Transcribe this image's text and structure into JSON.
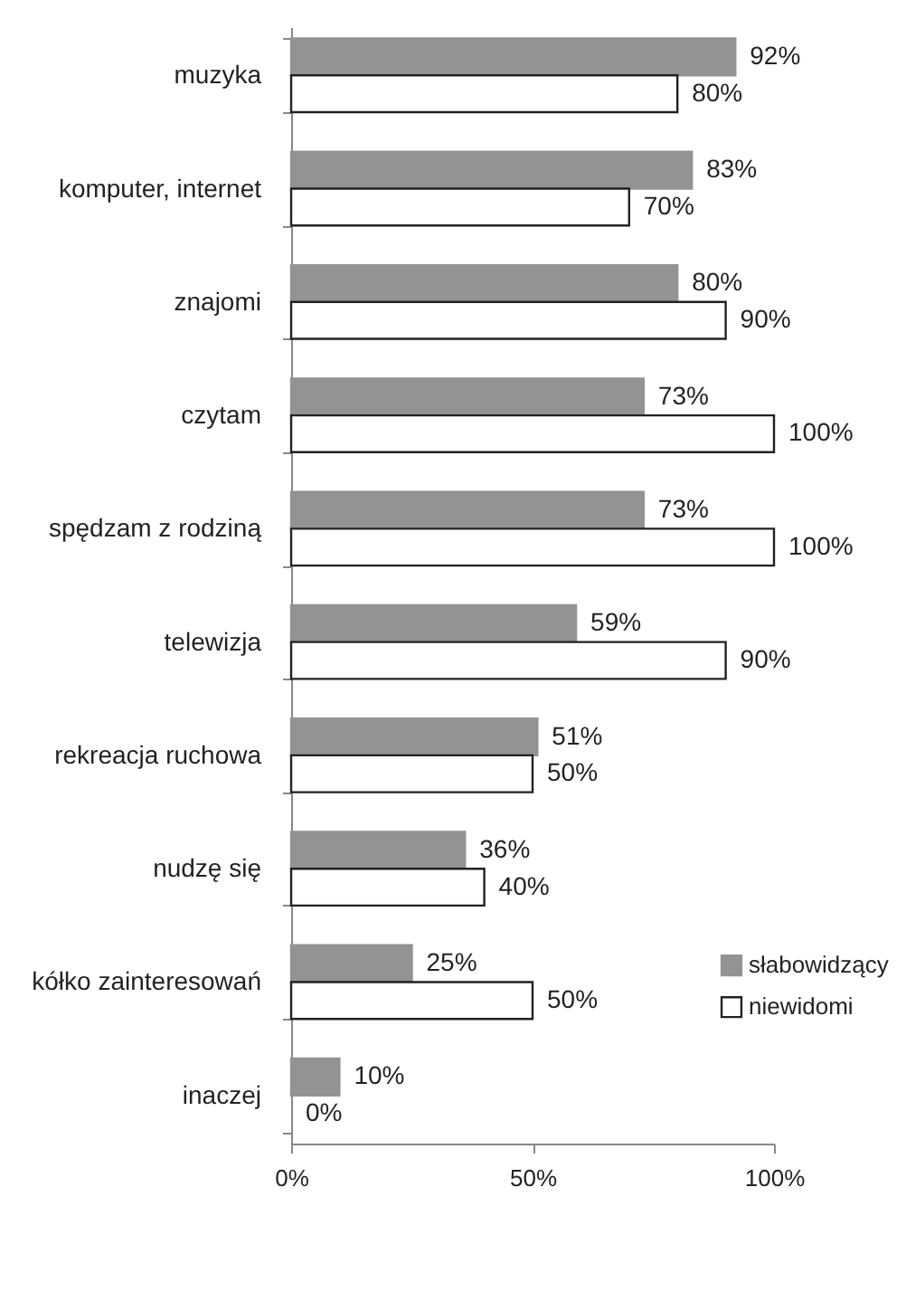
{
  "chart_data": {
    "type": "bar",
    "orientation": "horizontal",
    "categories": [
      "muzyka",
      "komputer, internet",
      "znajomi",
      "czytam",
      "spędzam z rodziną",
      "telewizja",
      "rekreacja ruchowa",
      "nudzę się",
      "kółko zainteresowań",
      "inaczej"
    ],
    "series": [
      {
        "name": "słabowidzący",
        "color": "#939393",
        "values": [
          92,
          83,
          80,
          73,
          73,
          59,
          51,
          36,
          25,
          10
        ],
        "value_labels": [
          "92%",
          "83%",
          "80%",
          "73%",
          "73%",
          "59%",
          "51%",
          "36%",
          "25%",
          "10%"
        ]
      },
      {
        "name": "niewidomi",
        "color": "#ffffff",
        "values": [
          80,
          70,
          90,
          100,
          100,
          90,
          50,
          40,
          50,
          0
        ],
        "value_labels": [
          "80%",
          "70%",
          "90%",
          "100%",
          "100%",
          "90%",
          "50%",
          "40%",
          "50%",
          "0%"
        ]
      }
    ],
    "xlim": [
      0,
      100
    ],
    "xticks": [
      {
        "value": 0,
        "label": "0%"
      },
      {
        "value": 50,
        "label": "50%"
      },
      {
        "value": 100,
        "label": "100%"
      }
    ],
    "grid": false,
    "legend": "right"
  }
}
